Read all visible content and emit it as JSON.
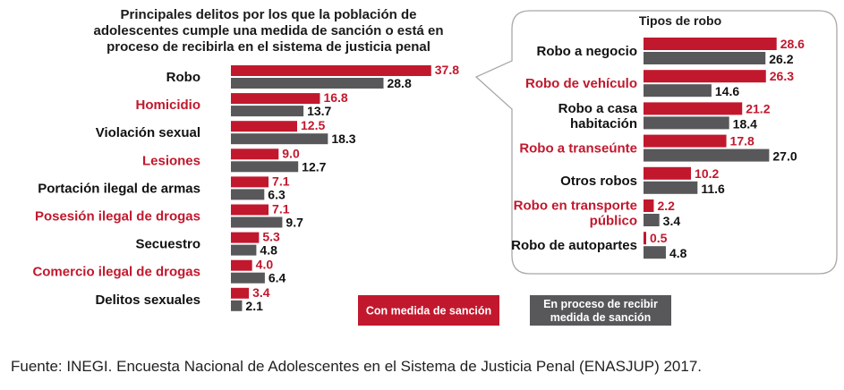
{
  "colors": {
    "red": "#c1182d",
    "grey": "#58585a",
    "black": "#111111"
  },
  "chart_data": [
    {
      "type": "bar",
      "orientation": "horizontal",
      "title": "Principales delitos por los que la población de adolescentes cumple una medida de sanción o está en proceso de recibirla en el sistema de justicia penal",
      "title_lines": [
        "Principales delitos por los que la población de",
        "adolescentes cumple una medida de sanción o está en",
        "proceso de recibirla en el sistema de justicia penal"
      ],
      "categories": [
        "Robo",
        "Homicidio",
        "Violación sexual",
        "Lesiones",
        "Portación ilegal de armas",
        "Posesión ilegal de drogas",
        "Secuestro",
        "Comercio ilegal de drogas",
        "Delitos sexuales"
      ],
      "category_colors": [
        "black",
        "red",
        "black",
        "red",
        "black",
        "red",
        "black",
        "red",
        "black"
      ],
      "series": [
        {
          "name": "Con medida de sanción",
          "values": [
            37.8,
            16.8,
            12.5,
            9.0,
            7.1,
            7.1,
            5.3,
            4.0,
            3.4
          ],
          "labels": [
            "37.8",
            "16.8",
            "12.5",
            "9.0",
            "7.1",
            "7.1",
            "5.3",
            "4.0",
            "3.4"
          ]
        },
        {
          "name": "En proceso de recibir medida de sanción",
          "values": [
            28.8,
            13.7,
            18.3,
            12.7,
            6.3,
            9.7,
            4.8,
            6.4,
            2.1
          ],
          "labels": [
            "28.8",
            "13.7",
            "18.3",
            "12.7",
            "6.3",
            "9.7",
            "4.8",
            "6.4",
            "2.1"
          ]
        }
      ]
    },
    {
      "type": "bar",
      "orientation": "horizontal",
      "title": "Tipos de robo",
      "categories": [
        [
          "Robo a negocio"
        ],
        [
          "Robo de vehículo"
        ],
        [
          "Robo a casa",
          "habitación"
        ],
        [
          "Robo a transeúnte"
        ],
        [
          "Otros robos"
        ],
        [
          "Robo en transporte",
          "público"
        ],
        [
          "Robo de autopartes"
        ]
      ],
      "category_colors": [
        "black",
        "red",
        "black",
        "red",
        "black",
        "red",
        "black"
      ],
      "series": [
        {
          "name": "Con medida de sanción",
          "values": [
            28.6,
            26.3,
            21.2,
            17.8,
            10.2,
            2.2,
            0.5
          ],
          "labels": [
            "28.6",
            "26.3",
            "21.2",
            "17.8",
            "10.2",
            "2.2",
            "0.5"
          ]
        },
        {
          "name": "En proceso de recibir medida de sanción",
          "values": [
            26.2,
            14.6,
            18.4,
            27.0,
            11.6,
            3.4,
            4.8
          ],
          "labels": [
            "26.2",
            "14.6",
            "18.4",
            "27.0",
            "11.6",
            "3.4",
            "4.8"
          ]
        }
      ]
    }
  ],
  "legend": [
    {
      "lines": [
        "Con medida de sanción"
      ],
      "color": "red"
    },
    {
      "lines": [
        "En proceso de recibir",
        "medida de sanción"
      ],
      "color": "grey"
    }
  ],
  "source": "Fuente: INEGI. Encuesta Nacional de Adolescentes en el Sistema de Justicia Penal (ENASJUP) 2017."
}
